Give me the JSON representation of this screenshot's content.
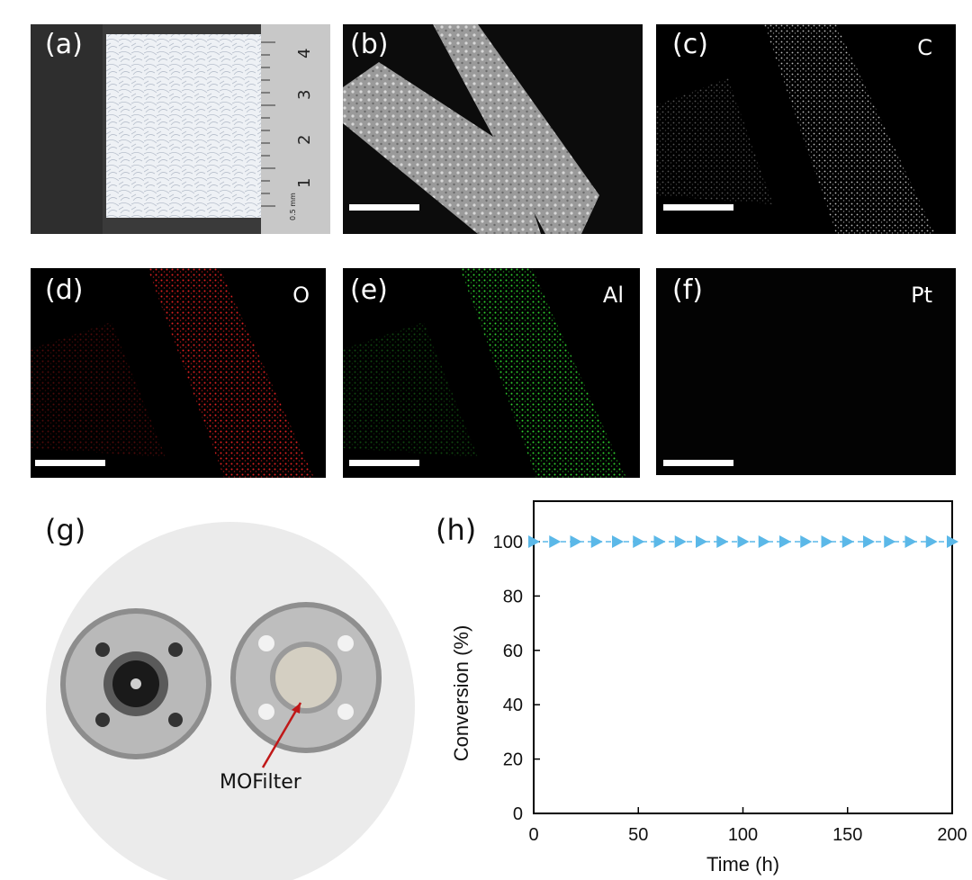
{
  "panels": {
    "a": {
      "label": "(a)"
    },
    "b": {
      "label": "(b)"
    },
    "c": {
      "label": "(c)",
      "element": "C"
    },
    "d": {
      "label": "(d)",
      "element": "O"
    },
    "e": {
      "label": "(e)",
      "element": "Al"
    },
    "f": {
      "label": "(f)",
      "element": "Pt"
    },
    "g": {
      "label": "(g)",
      "annotation": "MOFilter"
    },
    "h": {
      "label": "(h)"
    }
  },
  "ruler": {
    "ticks": [
      "1",
      "2",
      "3",
      "4"
    ],
    "unit": "0.5 mm"
  },
  "colors": {
    "O": "#e02020",
    "Al": "#2fcf2f",
    "C": "#e8e8e8",
    "marker": "#5bb8e8",
    "arrow": "#c01818"
  },
  "chart_data": {
    "type": "line",
    "xlabel": "Time (h)",
    "ylabel": "Conversion (%)",
    "xlim": [
      0,
      200
    ],
    "ylim": [
      0,
      100
    ],
    "xticks": [
      0,
      50,
      100,
      150,
      200
    ],
    "yticks": [
      0,
      20,
      40,
      60,
      80,
      100
    ],
    "grid": false,
    "series": [
      {
        "marker": "right-triangle",
        "x": [
          0,
          10,
          20,
          30,
          40,
          50,
          60,
          70,
          80,
          90,
          100,
          110,
          120,
          130,
          140,
          150,
          160,
          170,
          180,
          190,
          200
        ],
        "y": [
          100,
          100,
          100,
          100,
          100,
          100,
          100,
          100,
          100,
          100,
          100,
          100,
          100,
          100,
          100,
          100,
          100,
          100,
          100,
          100,
          100
        ]
      }
    ]
  }
}
